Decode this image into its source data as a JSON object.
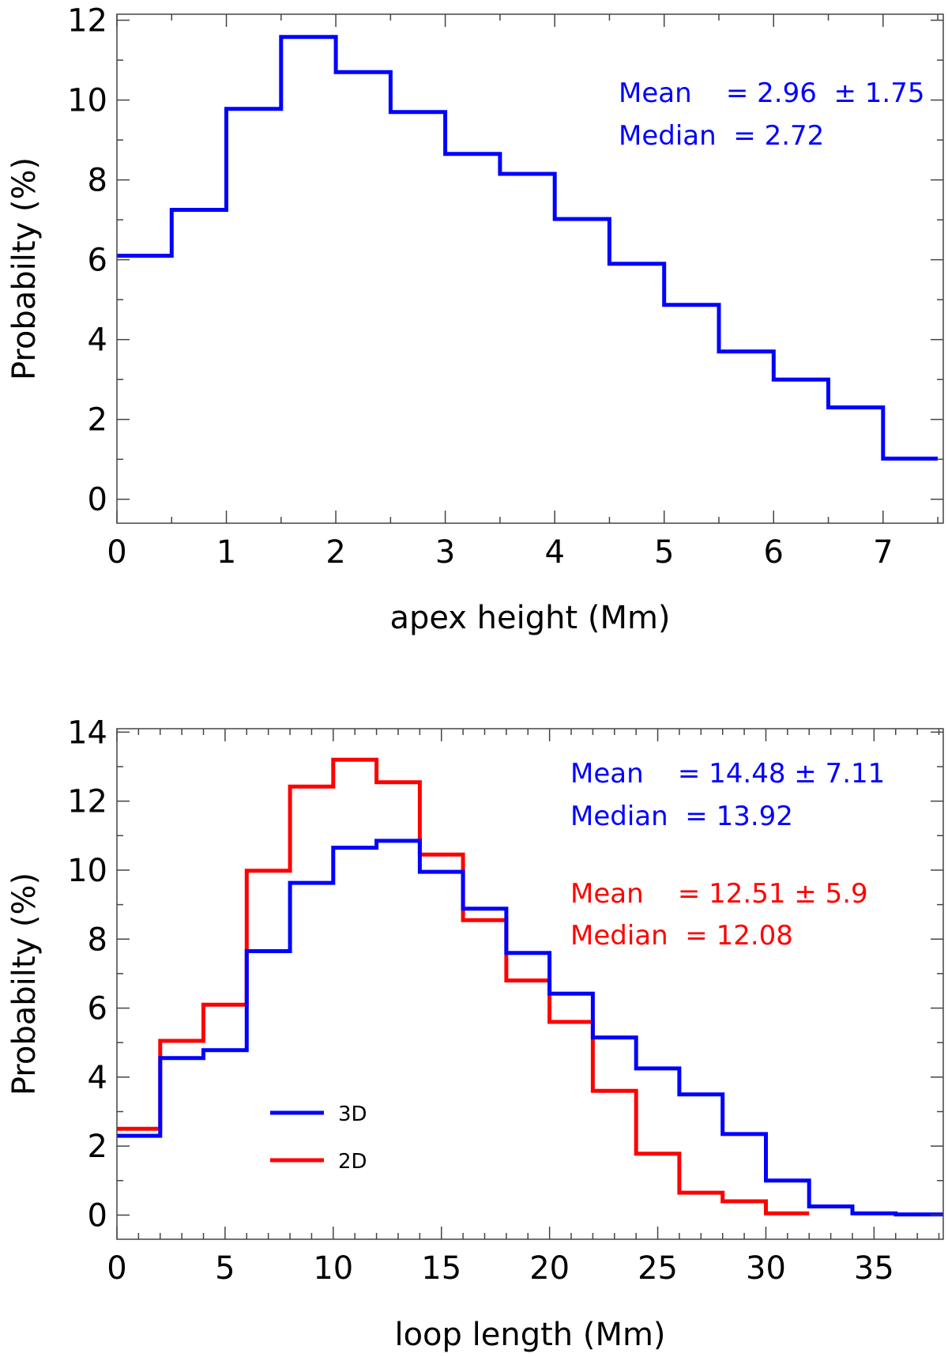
{
  "chart_data": [
    {
      "type": "line",
      "step": true,
      "xlabel": "apex height (Mm)",
      "ylabel": "Probabilty (%)",
      "xlim": [
        0,
        7.55
      ],
      "ylim": [
        -0.6,
        12.15
      ],
      "xticks": [
        0,
        1,
        2,
        3,
        4,
        5,
        6,
        7
      ],
      "xminor": 0.5,
      "yticks": [
        0,
        2,
        4,
        6,
        8,
        10,
        12
      ],
      "yminor": 1,
      "series": [
        {
          "name": "apex height",
          "color": "#0000ff",
          "edges": [
            0,
            0.5,
            1,
            1.5,
            2,
            2.5,
            3,
            3.5,
            4,
            4.5,
            5,
            5.5,
            6,
            6.5,
            7,
            7.5
          ],
          "values": [
            6.1,
            7.25,
            9.78,
            11.58,
            10.7,
            9.7,
            8.65,
            8.15,
            7.02,
            5.9,
            4.87,
            3.7,
            3.0,
            2.3,
            1.02
          ]
        }
      ],
      "annotations": [
        {
          "text": "Mean    = 2.96  ± 1.75",
          "color": "#0000ff"
        },
        {
          "text": "Median  = 2.72",
          "color": "#0000ff"
        }
      ]
    },
    {
      "type": "line",
      "step": true,
      "xlabel": "loop length (Mm)",
      "ylabel": "Probabilty (%)",
      "xlim": [
        0,
        38.2
      ],
      "ylim": [
        -0.7,
        14.1
      ],
      "xticks": [
        0,
        5,
        10,
        15,
        20,
        25,
        30,
        35
      ],
      "xminor": 1,
      "yticks": [
        0,
        2,
        4,
        6,
        8,
        10,
        12,
        14
      ],
      "yminor": 1,
      "series": [
        {
          "name": "2D",
          "color": "#ff0000",
          "edges": [
            0,
            2,
            4,
            6,
            8,
            10,
            12,
            14,
            16,
            18,
            20,
            22,
            24,
            26,
            28,
            30,
            32
          ],
          "values": [
            2.5,
            5.05,
            6.1,
            9.98,
            12.42,
            13.2,
            12.55,
            10.45,
            8.55,
            6.8,
            5.6,
            3.6,
            1.78,
            0.65,
            0.4,
            0.05
          ]
        },
        {
          "name": "3D",
          "color": "#0000ff",
          "edges": [
            0,
            2,
            4,
            6,
            8,
            10,
            12,
            14,
            16,
            18,
            20,
            22,
            24,
            26,
            28,
            30,
            32,
            34,
            36,
            38.2
          ],
          "values": [
            2.3,
            4.55,
            4.78,
            7.65,
            9.63,
            10.65,
            10.85,
            9.95,
            8.88,
            7.6,
            6.42,
            5.15,
            4.25,
            3.5,
            2.35,
            1.0,
            0.25,
            0.05,
            0.02
          ]
        }
      ],
      "legend": [
        {
          "label": "3D",
          "color": "#0000ff"
        },
        {
          "label": "2D",
          "color": "#ff0000"
        }
      ],
      "legend_position": "lower-left",
      "annotations": [
        {
          "text": "Mean    = 14.48 ± 7.11",
          "color": "#0000ff"
        },
        {
          "text": "Median  = 13.92",
          "color": "#0000ff"
        },
        {
          "text": "Mean    = 12.51 ± 5.9",
          "color": "#ff0000"
        },
        {
          "text": "Median  = 12.08",
          "color": "#ff0000"
        }
      ]
    }
  ]
}
